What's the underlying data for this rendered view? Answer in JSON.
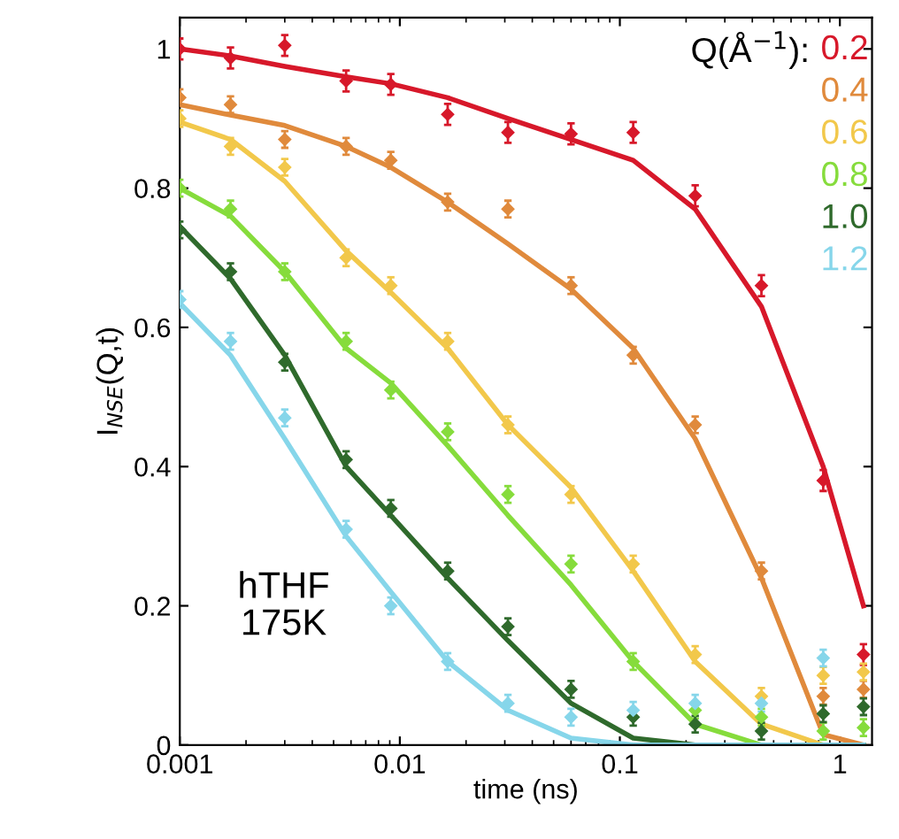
{
  "chart_data": {
    "type": "scatter",
    "xlabel": "time (ns)",
    "ylabel": "I$_{NSE}$(Q,t)",
    "legend_title": "Q(Å$^{−1}$):",
    "annotations": [
      "hTHF\n175K"
    ],
    "log": "x",
    "xlim": [
      0.001,
      1.4
    ],
    "ylim": [
      0,
      1.045
    ],
    "xticks": [
      0.001,
      0.01,
      0.1,
      1
    ],
    "yticks": [
      0,
      0.2,
      0.4,
      0.6,
      0.8,
      1
    ],
    "grid": false,
    "legend": "top right",
    "line_style": "solid",
    "x": [
      0.001,
      0.0017,
      0.003,
      0.0057,
      0.0091,
      0.0165,
      0.031,
      0.06,
      0.115,
      0.22,
      0.44,
      0.84,
      1.28
    ],
    "series": [
      {
        "name": "0.2",
        "marker": "diamond",
        "color": "#d7182a",
        "values": [
          1.0,
          0.987,
          1.005,
          0.954,
          0.949,
          0.906,
          0.88,
          0.878,
          0.88,
          0.789,
          0.66,
          0.38,
          0.13
        ],
        "errors": [
          0.015,
          0.015,
          0.015,
          0.015,
          0.015,
          0.015,
          0.015,
          0.015,
          0.015,
          0.015,
          0.015,
          0.015,
          0.015
        ]
      },
      {
        "name": "0.4",
        "marker": "diamond",
        "color": "#e08a3c",
        "values": [
          0.93,
          0.92,
          0.87,
          0.86,
          0.84,
          0.78,
          0.77,
          0.66,
          0.56,
          0.46,
          0.25,
          0.07,
          0.08
        ],
        "errors": [
          0.012,
          0.012,
          0.012,
          0.012,
          0.012,
          0.012,
          0.012,
          0.012,
          0.012,
          0.012,
          0.012,
          0.012,
          0.012
        ]
      },
      {
        "name": "0.6",
        "marker": "diamond",
        "color": "#f2c84b",
        "values": [
          0.9,
          0.86,
          0.83,
          0.7,
          0.66,
          0.58,
          0.46,
          0.36,
          0.26,
          0.13,
          0.07,
          0.1,
          0.105
        ],
        "errors": [
          0.012,
          0.012,
          0.012,
          0.012,
          0.012,
          0.012,
          0.012,
          0.012,
          0.012,
          0.012,
          0.012,
          0.012,
          0.012
        ]
      },
      {
        "name": "0.8",
        "marker": "diamond",
        "color": "#86dc3c",
        "values": [
          0.8,
          0.77,
          0.68,
          0.58,
          0.51,
          0.45,
          0.36,
          0.26,
          0.12,
          0.05,
          0.04,
          0.02,
          0.025
        ],
        "errors": [
          0.012,
          0.012,
          0.012,
          0.012,
          0.012,
          0.012,
          0.012,
          0.012,
          0.012,
          0.012,
          0.012,
          0.012,
          0.012
        ]
      },
      {
        "name": "1.0",
        "marker": "diamond",
        "color": "#2f6a2c",
        "values": [
          0.74,
          0.68,
          0.55,
          0.41,
          0.34,
          0.25,
          0.17,
          0.08,
          0.04,
          0.03,
          0.02,
          0.045,
          0.055
        ],
        "errors": [
          0.012,
          0.012,
          0.012,
          0.012,
          0.012,
          0.012,
          0.012,
          0.012,
          0.012,
          0.012,
          0.012,
          0.012,
          0.012
        ]
      },
      {
        "name": "1.2",
        "marker": "diamond",
        "color": "#86d6ea",
        "values": [
          0.64,
          0.58,
          0.47,
          0.31,
          0.2,
          0.12,
          0.06,
          0.04,
          0.05,
          0.06,
          0.06,
          0.125,
          null
        ],
        "errors": [
          0.012,
          0.012,
          0.012,
          0.012,
          0.012,
          0.012,
          0.012,
          0.012,
          0.012,
          0.012,
          0.012,
          0.012,
          null
        ]
      },
      {
        "type": "line",
        "marker": "none",
        "color": "#d7182a",
        "values": [
          1.0,
          0.99,
          0.975,
          0.96,
          0.95,
          0.93,
          0.9,
          0.87,
          0.84,
          0.77,
          0.63,
          0.4,
          0.2
        ]
      },
      {
        "type": "line",
        "marker": "none",
        "color": "#e08a3c",
        "values": [
          0.92,
          0.905,
          0.89,
          0.86,
          0.83,
          0.78,
          0.72,
          0.655,
          0.57,
          0.44,
          0.24,
          0.015,
          0
        ]
      },
      {
        "type": "line",
        "marker": "none",
        "color": "#f2c84b",
        "values": [
          0.895,
          0.87,
          0.81,
          0.71,
          0.65,
          0.57,
          0.46,
          0.37,
          0.25,
          0.12,
          0.03,
          0,
          0
        ]
      },
      {
        "type": "line",
        "marker": "none",
        "color": "#86dc3c",
        "values": [
          0.8,
          0.76,
          0.68,
          0.57,
          0.52,
          0.43,
          0.33,
          0.23,
          0.12,
          0.03,
          0,
          0,
          0
        ]
      },
      {
        "type": "line",
        "marker": "none",
        "color": "#2f6a2c",
        "values": [
          0.745,
          0.67,
          0.56,
          0.4,
          0.33,
          0.24,
          0.15,
          0.06,
          0.01,
          0,
          0,
          0,
          0
        ]
      },
      {
        "type": "line",
        "marker": "none",
        "color": "#86d6ea",
        "values": [
          0.635,
          0.56,
          0.44,
          0.3,
          0.22,
          0.12,
          0.05,
          0.01,
          0,
          0,
          0,
          0,
          0
        ]
      }
    ]
  }
}
